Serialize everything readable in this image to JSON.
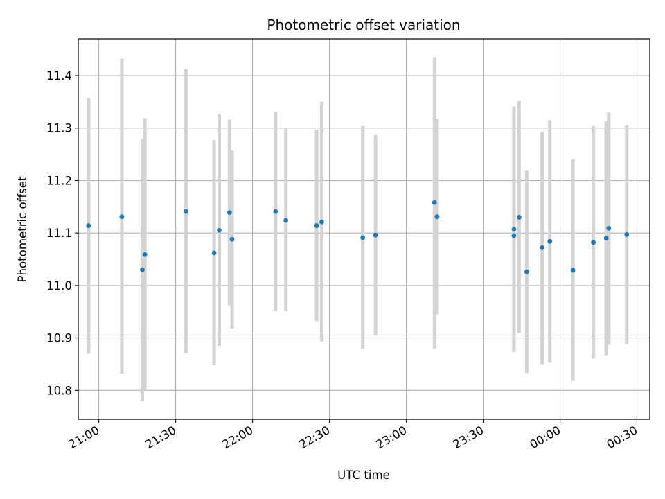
{
  "chart_data": {
    "type": "scatter",
    "title": "Photometric offset variation",
    "xlabel": "UTC time",
    "ylabel": "Photometric offset",
    "grid": true,
    "x_axis": {
      "kind": "time",
      "range": [
        "20:52",
        "00:35"
      ],
      "ticks": [
        "21:00",
        "21:30",
        "22:00",
        "22:30",
        "23:00",
        "23:30",
        "00:00",
        "00:30"
      ]
    },
    "y_axis": {
      "range": [
        10.745,
        11.47
      ],
      "ticks": [
        "10.8",
        "10.9",
        "11.0",
        "11.1",
        "11.2",
        "11.3",
        "11.4"
      ]
    },
    "series": [
      {
        "color": "#1f77b4",
        "errorbar_color": "#d3d3d3",
        "points": [
          {
            "t": "20:56",
            "y": 11.114,
            "lo": 10.87,
            "hi": 11.357
          },
          {
            "t": "21:09",
            "y": 11.131,
            "lo": 10.832,
            "hi": 11.432
          },
          {
            "t": "21:17",
            "y": 11.03,
            "lo": 10.78,
            "hi": 11.28
          },
          {
            "t": "21:18",
            "y": 11.059,
            "lo": 10.8,
            "hi": 11.319
          },
          {
            "t": "21:34",
            "y": 11.141,
            "lo": 10.871,
            "hi": 11.412
          },
          {
            "t": "21:45",
            "y": 11.062,
            "lo": 10.848,
            "hi": 11.277
          },
          {
            "t": "21:47",
            "y": 11.105,
            "lo": 10.885,
            "hi": 11.326
          },
          {
            "t": "21:51",
            "y": 11.139,
            "lo": 10.962,
            "hi": 11.316
          },
          {
            "t": "21:52",
            "y": 11.088,
            "lo": 10.918,
            "hi": 11.257
          },
          {
            "t": "22:09",
            "y": 11.141,
            "lo": 10.951,
            "hi": 11.331
          },
          {
            "t": "22:13",
            "y": 11.124,
            "lo": 10.951,
            "hi": 11.299
          },
          {
            "t": "22:25",
            "y": 11.114,
            "lo": 10.932,
            "hi": 11.297
          },
          {
            "t": "22:27",
            "y": 11.121,
            "lo": 10.893,
            "hi": 11.35
          },
          {
            "t": "22:43",
            "y": 11.091,
            "lo": 10.879,
            "hi": 11.304
          },
          {
            "t": "22:48",
            "y": 11.096,
            "lo": 10.905,
            "hi": 11.287
          },
          {
            "t": "23:11",
            "y": 11.158,
            "lo": 10.88,
            "hi": 11.435
          },
          {
            "t": "23:12",
            "y": 11.131,
            "lo": 10.945,
            "hi": 11.318
          },
          {
            "t": "23:42",
            "y": 11.095,
            "lo": 10.873,
            "hi": 11.319
          },
          {
            "t": "23:42",
            "y": 11.107,
            "lo": 10.874,
            "hi": 11.341
          },
          {
            "t": "23:44",
            "y": 11.13,
            "lo": 10.909,
            "hi": 11.351
          },
          {
            "t": "23:47",
            "y": 11.026,
            "lo": 10.833,
            "hi": 11.219
          },
          {
            "t": "23:53",
            "y": 11.072,
            "lo": 10.85,
            "hi": 11.293
          },
          {
            "t": "23:56",
            "y": 11.084,
            "lo": 10.853,
            "hi": 11.315
          },
          {
            "t": "00:05",
            "y": 11.029,
            "lo": 10.818,
            "hi": 11.24
          },
          {
            "t": "00:13",
            "y": 11.082,
            "lo": 10.861,
            "hi": 11.304
          },
          {
            "t": "00:18",
            "y": 11.09,
            "lo": 10.867,
            "hi": 11.313
          },
          {
            "t": "00:19",
            "y": 11.109,
            "lo": 10.887,
            "hi": 11.33
          },
          {
            "t": "00:26",
            "y": 11.097,
            "lo": 10.888,
            "hi": 11.305
          }
        ]
      }
    ]
  }
}
